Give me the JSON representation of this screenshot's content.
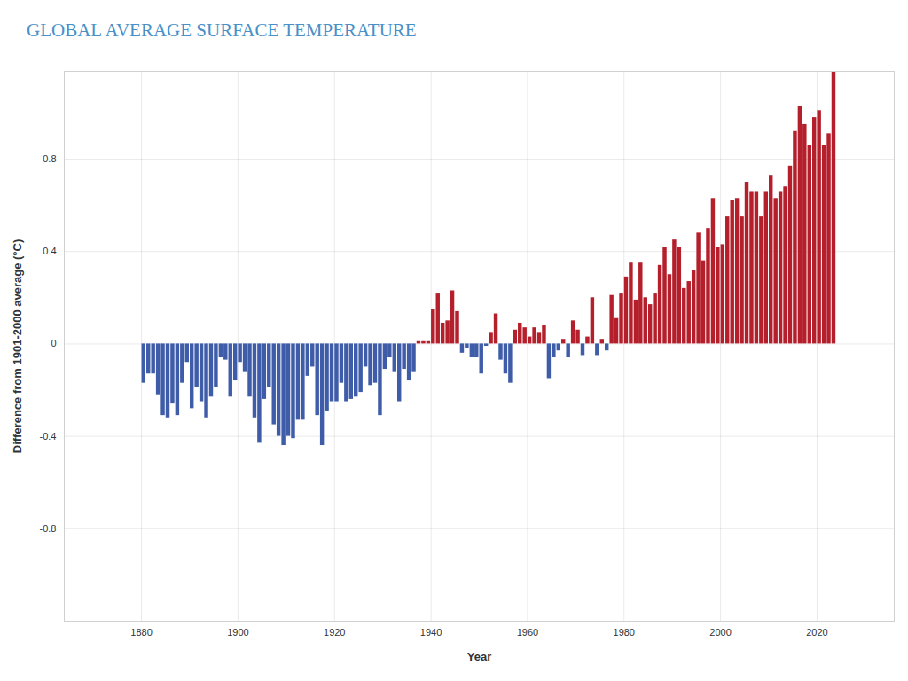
{
  "chart_data": {
    "type": "bar",
    "title": "GLOBAL AVERAGE SURFACE TEMPERATURE",
    "xlabel": "Year",
    "ylabel": "Difference from 1901-2000 average (°C)",
    "x": [
      1880,
      1881,
      1882,
      1883,
      1884,
      1885,
      1886,
      1887,
      1888,
      1889,
      1890,
      1891,
      1892,
      1893,
      1894,
      1895,
      1896,
      1897,
      1898,
      1899,
      1900,
      1901,
      1902,
      1903,
      1904,
      1905,
      1906,
      1907,
      1908,
      1909,
      1910,
      1911,
      1912,
      1913,
      1914,
      1915,
      1916,
      1917,
      1918,
      1919,
      1920,
      1921,
      1922,
      1923,
      1924,
      1925,
      1926,
      1927,
      1928,
      1929,
      1930,
      1931,
      1932,
      1933,
      1934,
      1935,
      1936,
      1937,
      1938,
      1939,
      1940,
      1941,
      1942,
      1943,
      1944,
      1945,
      1946,
      1947,
      1948,
      1949,
      1950,
      1951,
      1952,
      1953,
      1954,
      1955,
      1956,
      1957,
      1958,
      1959,
      1960,
      1961,
      1962,
      1963,
      1964,
      1965,
      1966,
      1967,
      1968,
      1969,
      1970,
      1971,
      1972,
      1973,
      1974,
      1975,
      1976,
      1977,
      1978,
      1979,
      1980,
      1981,
      1982,
      1983,
      1984,
      1985,
      1986,
      1987,
      1988,
      1989,
      1990,
      1991,
      1992,
      1993,
      1994,
      1995,
      1996,
      1997,
      1998,
      1999,
      2000,
      2001,
      2002,
      2003,
      2004,
      2005,
      2006,
      2007,
      2008,
      2009,
      2010,
      2011,
      2012,
      2013,
      2014,
      2015,
      2016,
      2017,
      2018,
      2019,
      2020,
      2021,
      2022,
      2023
    ],
    "values": [
      -0.17,
      -0.13,
      -0.13,
      -0.22,
      -0.31,
      -0.32,
      -0.26,
      -0.31,
      -0.17,
      -0.08,
      -0.28,
      -0.19,
      -0.25,
      -0.32,
      -0.23,
      -0.19,
      -0.06,
      -0.07,
      -0.23,
      -0.16,
      -0.08,
      -0.12,
      -0.23,
      -0.32,
      -0.43,
      -0.24,
      -0.19,
      -0.35,
      -0.4,
      -0.44,
      -0.4,
      -0.41,
      -0.33,
      -0.33,
      -0.14,
      -0.1,
      -0.31,
      -0.44,
      -0.29,
      -0.25,
      -0.25,
      -0.17,
      -0.25,
      -0.24,
      -0.23,
      -0.21,
      -0.1,
      -0.18,
      -0.17,
      -0.31,
      -0.11,
      -0.06,
      -0.12,
      -0.25,
      -0.11,
      -0.16,
      -0.12,
      0.01,
      0.01,
      0.01,
      0.15,
      0.22,
      0.09,
      0.1,
      0.23,
      0.14,
      -0.04,
      -0.02,
      -0.06,
      -0.06,
      -0.13,
      -0.01,
      0.05,
      0.13,
      -0.07,
      -0.13,
      -0.17,
      0.06,
      0.09,
      0.07,
      0.03,
      0.07,
      0.05,
      0.08,
      -0.15,
      -0.06,
      -0.03,
      0.02,
      -0.06,
      0.1,
      0.06,
      -0.05,
      0.03,
      0.2,
      -0.05,
      0.02,
      -0.03,
      0.21,
      0.11,
      0.22,
      0.29,
      0.35,
      0.19,
      0.35,
      0.2,
      0.17,
      0.22,
      0.34,
      0.42,
      0.3,
      0.45,
      0.42,
      0.24,
      0.27,
      0.32,
      0.48,
      0.36,
      0.5,
      0.63,
      0.42,
      0.43,
      0.55,
      0.62,
      0.63,
      0.55,
      0.7,
      0.66,
      0.66,
      0.55,
      0.66,
      0.73,
      0.63,
      0.66,
      0.68,
      0.77,
      0.92,
      1.03,
      0.95,
      0.86,
      0.98,
      1.01,
      0.86,
      0.91,
      1.18
    ],
    "colors": [
      "#3e5ca8",
      "#3e5ca8",
      "#3e5ca8",
      "#3e5ca8",
      "#3e5ca8",
      "#3e5ca8",
      "#3e5ca8",
      "#3e5ca8",
      "#3e5ca8",
      "#3e5ca8",
      "#3e5ca8",
      "#3e5ca8",
      "#3e5ca8",
      "#3e5ca8",
      "#3e5ca8",
      "#3e5ca8",
      "#3e5ca8",
      "#3e5ca8",
      "#3e5ca8",
      "#3e5ca8",
      "#3e5ca8",
      "#3e5ca8",
      "#3e5ca8",
      "#3e5ca8",
      "#3e5ca8",
      "#3e5ca8",
      "#3e5ca8",
      "#3e5ca8",
      "#3e5ca8",
      "#3e5ca8",
      "#3e5ca8",
      "#3e5ca8",
      "#3e5ca8",
      "#3e5ca8",
      "#3e5ca8",
      "#3e5ca8",
      "#3e5ca8",
      "#3e5ca8",
      "#3e5ca8",
      "#3e5ca8",
      "#3e5ca8",
      "#3e5ca8",
      "#3e5ca8",
      "#3e5ca8",
      "#3e5ca8",
      "#3e5ca8",
      "#3e5ca8",
      "#3e5ca8",
      "#3e5ca8",
      "#3e5ca8",
      "#3e5ca8",
      "#3e5ca8",
      "#3e5ca8",
      "#3e5ca8",
      "#3e5ca8",
      "#3e5ca8",
      "#3e5ca8",
      "#b41f2b",
      "#b41f2b",
      "#b41f2b",
      "#b41f2b",
      "#b41f2b",
      "#b41f2b",
      "#b41f2b",
      "#b41f2b",
      "#b41f2b",
      "#3e5ca8",
      "#3e5ca8",
      "#3e5ca8",
      "#3e5ca8",
      "#3e5ca8",
      "#3e5ca8",
      "#b41f2b",
      "#b41f2b",
      "#3e5ca8",
      "#3e5ca8",
      "#3e5ca8",
      "#b41f2b",
      "#b41f2b",
      "#b41f2b",
      "#b41f2b",
      "#b41f2b",
      "#b41f2b",
      "#b41f2b",
      "#3e5ca8",
      "#3e5ca8",
      "#3e5ca8",
      "#b41f2b",
      "#3e5ca8",
      "#b41f2b",
      "#b41f2b",
      "#3e5ca8",
      "#b41f2b",
      "#b41f2b",
      "#3e5ca8",
      "#b41f2b",
      "#3e5ca8",
      "#b41f2b",
      "#b41f2b",
      "#b41f2b",
      "#b41f2b",
      "#b41f2b",
      "#b41f2b",
      "#b41f2b",
      "#b41f2b",
      "#b41f2b",
      "#b41f2b",
      "#b41f2b",
      "#b41f2b",
      "#b41f2b",
      "#b41f2b",
      "#b41f2b",
      "#b41f2b",
      "#b41f2b",
      "#b41f2b",
      "#b41f2b",
      "#b41f2b",
      "#b41f2b",
      "#b41f2b",
      "#b41f2b",
      "#b41f2b",
      "#b41f2b",
      "#b41f2b",
      "#b41f2b",
      "#b41f2b",
      "#b41f2b",
      "#b41f2b",
      "#b41f2b",
      "#b41f2b",
      "#b41f2b",
      "#b41f2b",
      "#b41f2b",
      "#b41f2b",
      "#b41f2b",
      "#b41f2b",
      "#b41f2b",
      "#b41f2b",
      "#b41f2b",
      "#b41f2b",
      "#b41f2b",
      "#b41f2b",
      "#b41f2b",
      "#b41f2b",
      "#b41f2b"
    ],
    "xlim": [
      1864,
      2036
    ],
    "ylim": [
      -1.2,
      1.18
    ],
    "xticks": [
      1880,
      1900,
      1920,
      1940,
      1960,
      1980,
      2000,
      2020
    ],
    "yticks": [
      -0.8,
      -0.4,
      0,
      0.4,
      0.8
    ],
    "grid": true
  }
}
